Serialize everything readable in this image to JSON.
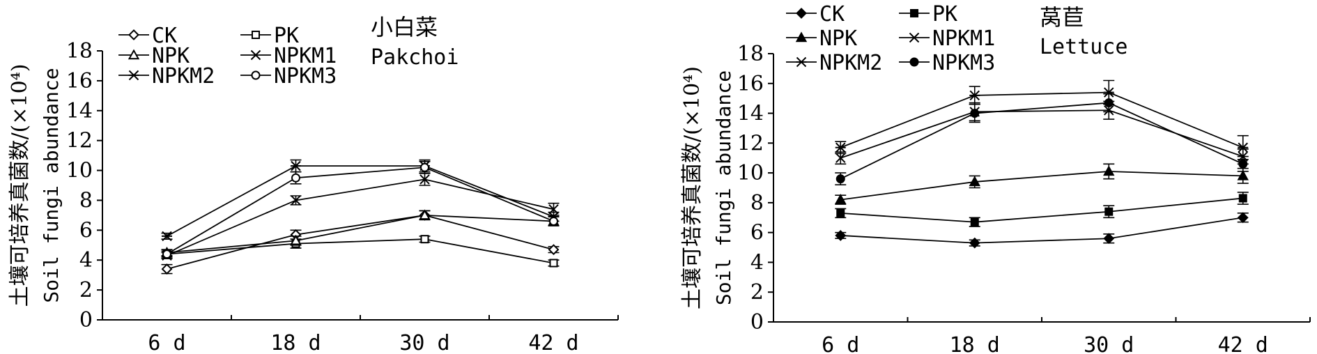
{
  "chart_data": [
    {
      "type": "line",
      "title": "小白菜",
      "subtitle": "Pakchoi",
      "ylabel_cn": "土壤可培养真菌数/(×10⁴)",
      "ylabel_en": "Soil fungi abundance",
      "xlabel": "",
      "categories": [
        "6 d",
        "18 d",
        "30 d",
        "42 d"
      ],
      "ylim": [
        0,
        18
      ],
      "yticks": [
        "0",
        "2",
        "4",
        "6",
        "8",
        "10",
        "12",
        "14",
        "16",
        "18"
      ],
      "legend_position": "top-left, 2 columns",
      "series": [
        {
          "name": "CK",
          "marker": "diamond-open",
          "values": [
            3.4,
            5.7,
            7.0,
            4.7
          ],
          "errors": [
            0.3,
            0.3,
            0.3,
            0.2
          ]
        },
        {
          "name": "PK",
          "marker": "square-open",
          "values": [
            4.4,
            5.1,
            5.4,
            3.8
          ],
          "errors": [
            0.2,
            0.3,
            0.2,
            0.2
          ]
        },
        {
          "name": "NPK",
          "marker": "triangle-open",
          "values": [
            4.5,
            5.3,
            7.0,
            6.6
          ],
          "errors": [
            0.2,
            0.3,
            0.3,
            0.3
          ]
        },
        {
          "name": "NPKM1",
          "marker": "x",
          "values": [
            4.3,
            8.0,
            9.4,
            7.4
          ],
          "errors": [
            0.2,
            0.3,
            0.4,
            0.4
          ]
        },
        {
          "name": "NPKM2",
          "marker": "asterisk",
          "values": [
            5.6,
            10.3,
            10.3,
            6.9
          ],
          "errors": [
            0.2,
            0.4,
            0.4,
            0.3
          ]
        },
        {
          "name": "NPKM3",
          "marker": "circle-open",
          "values": [
            4.4,
            9.5,
            10.2,
            6.6
          ],
          "errors": [
            0.3,
            0.4,
            0.4,
            0.3
          ]
        }
      ]
    },
    {
      "type": "line",
      "title": "莴苣",
      "subtitle": "Lettuce",
      "ylabel_cn": "土壤可培养真菌数/(×10⁴)",
      "ylabel_en": "Soil fungi abundance",
      "xlabel": "",
      "categories": [
        "6 d",
        "18 d",
        "30 d",
        "42 d"
      ],
      "ylim": [
        0,
        18
      ],
      "yticks": [
        "0",
        "2",
        "4",
        "6",
        "8",
        "10",
        "12",
        "14",
        "16",
        "18"
      ],
      "legend_position": "top-left, 2 columns",
      "series": [
        {
          "name": "CK",
          "marker": "diamond-filled",
          "values": [
            5.8,
            5.3,
            5.6,
            7.0
          ],
          "errors": [
            0.2,
            0.2,
            0.3,
            0.3
          ]
        },
        {
          "name": "PK",
          "marker": "square-filled",
          "values": [
            7.3,
            6.7,
            7.4,
            8.3
          ],
          "errors": [
            0.3,
            0.3,
            0.4,
            0.4
          ]
        },
        {
          "name": "NPK",
          "marker": "triangle-filled",
          "values": [
            8.2,
            9.4,
            10.1,
            9.8
          ],
          "errors": [
            0.3,
            0.4,
            0.5,
            0.5
          ]
        },
        {
          "name": "NPKM1",
          "marker": "x",
          "values": [
            11.0,
            14.1,
            14.2,
            11.1
          ],
          "errors": [
            0.4,
            0.6,
            0.6,
            0.5
          ]
        },
        {
          "name": "NPKM2",
          "marker": "asterisk",
          "values": [
            11.7,
            15.2,
            15.4,
            11.7
          ],
          "errors": [
            0.4,
            0.6,
            0.8,
            0.8
          ]
        },
        {
          "name": "NPKM3",
          "marker": "circle-filled",
          "values": [
            9.6,
            14.0,
            14.7,
            10.6
          ],
          "errors": [
            0.4,
            0.6,
            0.6,
            0.5
          ]
        }
      ]
    }
  ]
}
